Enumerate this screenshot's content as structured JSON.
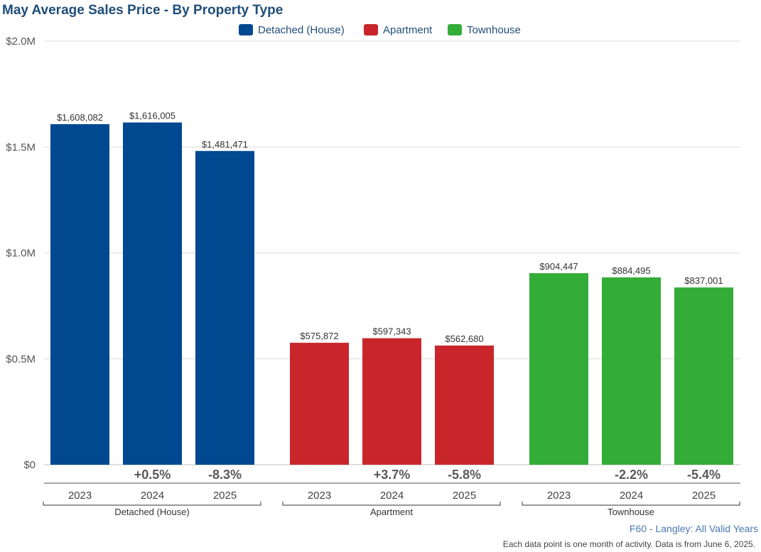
{
  "chart_data": {
    "type": "bar",
    "title": "May Average Sales Price - By Property Type",
    "ylim": [
      0,
      2000000
    ],
    "y_ticks": [
      {
        "value": 0,
        "label": "$0"
      },
      {
        "value": 500000,
        "label": "$0.5M"
      },
      {
        "value": 1000000,
        "label": "$1.0M"
      },
      {
        "value": 1500000,
        "label": "$1.5M"
      },
      {
        "value": 2000000,
        "label": "$2.0M"
      }
    ],
    "grid": true,
    "legend_position": "top-center",
    "categories": [
      "2023",
      "2024",
      "2025"
    ],
    "series": [
      {
        "name": "Detached (House)",
        "color": "#004990",
        "values": [
          1608082,
          1616005,
          1481471
        ],
        "value_labels": [
          "$1,608,082",
          "$1,616,005",
          "$1,481,471"
        ],
        "changes": [
          "",
          "+0.5%",
          "-8.3%"
        ]
      },
      {
        "name": "Apartment",
        "color": "#c8262a",
        "values": [
          575872,
          597343,
          562680
        ],
        "value_labels": [
          "$575,872",
          "$597,343",
          "$562,680"
        ],
        "changes": [
          "",
          "+3.7%",
          "-5.8%"
        ]
      },
      {
        "name": "Townhouse",
        "color": "#34ad38",
        "values": [
          904447,
          884495,
          837001
        ],
        "value_labels": [
          "$904,447",
          "$884,495",
          "$837,001"
        ],
        "changes": [
          "",
          "-2.2%",
          "-5.4%"
        ]
      }
    ]
  },
  "source": "F60 - Langley: All Valid Years",
  "footnote": "Each data point is one month of activity. Data is from June 6, 2025."
}
